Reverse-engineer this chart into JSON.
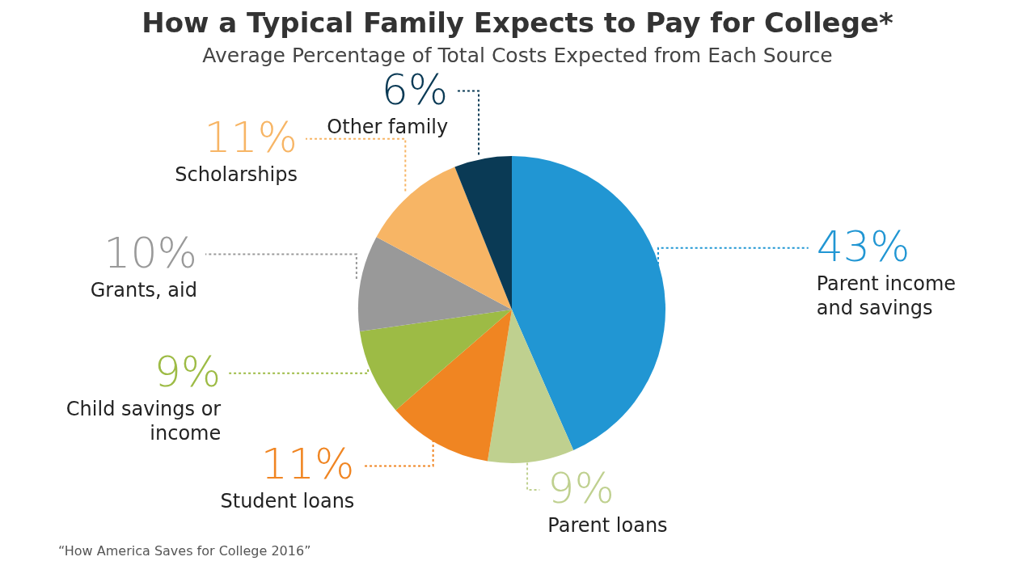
{
  "chart_data": {
    "type": "pie",
    "title": "How a Typical Family Expects to Pay for College*",
    "subtitle": "Average Percentage of Total Costs Expected from Each Source",
    "categories": [
      "Parent income and savings",
      "Parent loans",
      "Student loans",
      "Child savings or income",
      "Grants, aid",
      "Scholarships",
      "Other family"
    ],
    "values": [
      43,
      9,
      11,
      9,
      10,
      11,
      6
    ],
    "value_labels": [
      "43%",
      "9%",
      "11%",
      "9%",
      "10%",
      "11%",
      "6%"
    ],
    "colors": [
      "#2196d3",
      "#bfd08f",
      "#f08522",
      "#9dbb45",
      "#999999",
      "#f7b565",
      "#0a3a55"
    ],
    "annotations": [
      "“How America Saves for College 2016”"
    ],
    "legend": false
  }
}
